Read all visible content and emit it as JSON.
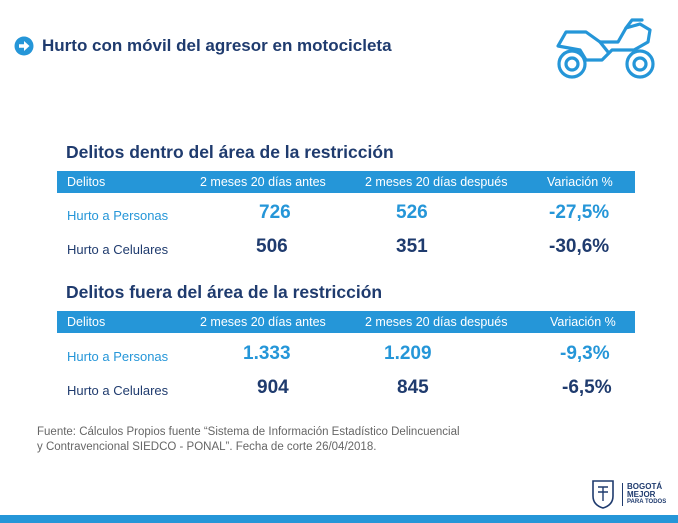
{
  "header": {
    "title": "Hurto con móvil del agresor en motocicleta",
    "arrow_icon": "arrow-right-circle-icon",
    "moto_icon": "motorcycle-icon"
  },
  "columns": [
    "Delitos",
    "2 meses 20 días antes",
    "2 meses 20 días después",
    "Variación %"
  ],
  "section1": {
    "title": "Delitos dentro del área de la restricción",
    "rows": [
      {
        "label": "Hurto a Personas",
        "before": "726",
        "after": "526",
        "variation": "-27,5%"
      },
      {
        "label": "Hurto a Celulares",
        "before": "506",
        "after": "351",
        "variation": "-30,6%"
      }
    ]
  },
  "section2": {
    "title": "Delitos fuera del área de la restricción",
    "rows": [
      {
        "label": "Hurto a Personas",
        "before": "1.333",
        "after": "1.209",
        "variation": "-9,3%"
      },
      {
        "label": "Hurto a Celulares",
        "before": "904",
        "after": "845",
        "variation": "-6,5%"
      }
    ]
  },
  "source_line1": "Fuente: Cálculos Propios fuente “Sistema de Información Estadístico Delincuencial",
  "source_line2": "y Contravencional SIEDCO - PONAL”. Fecha de corte 26/04/2018.",
  "logo": {
    "line1": "BOGOTÁ",
    "line2": "MEJOR",
    "line3": "PARA TODOS"
  },
  "colors": {
    "accent": "#2596d8",
    "navy": "#1f3b6e",
    "source_text": "#666666"
  }
}
